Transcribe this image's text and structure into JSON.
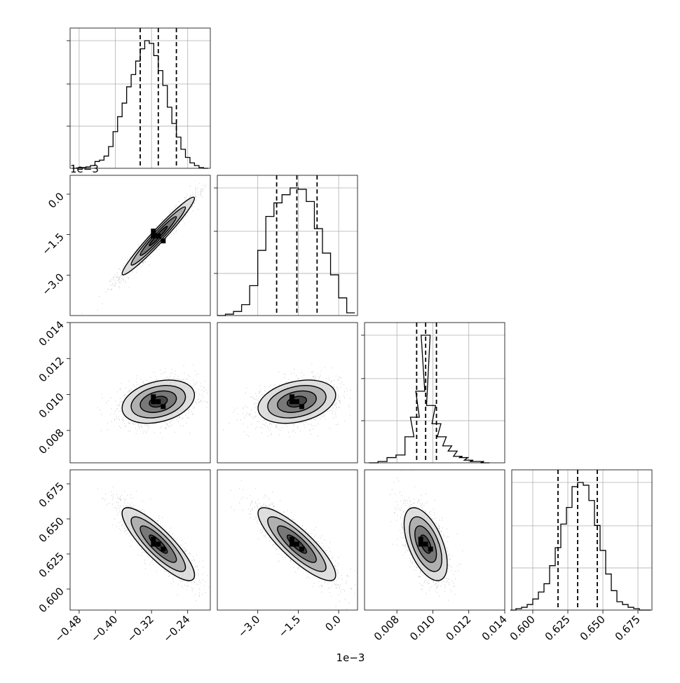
{
  "chart_data": {
    "type": "corner",
    "offset_labels": {
      "row2_y": "1e−3",
      "col2_x": "1e−3"
    },
    "parameters": [
      {
        "range": [
          -0.5,
          -0.19
        ],
        "ticks": [
          -0.48,
          -0.4,
          -0.32,
          -0.24
        ],
        "tick_labels": [
          "−0.48",
          "−0.40",
          "−0.32",
          "−0.24"
        ],
        "mean": -0.305,
        "sd": 0.04,
        "quantiles": [
          -0.345,
          -0.305,
          -0.265
        ],
        "hist_x": [
          -0.49,
          -0.48,
          -0.47,
          -0.46,
          -0.45,
          -0.44,
          -0.43,
          -0.42,
          -0.41,
          -0.4,
          -0.39,
          -0.38,
          -0.37,
          -0.36,
          -0.35,
          -0.34,
          -0.33,
          -0.32,
          -0.31,
          -0.3,
          -0.29,
          -0.28,
          -0.27,
          -0.26,
          -0.25,
          -0.24,
          -0.23,
          -0.22,
          -0.21,
          -0.2
        ],
        "hist_counts": [
          0.0,
          0.003,
          0.006,
          0.01,
          0.02,
          0.05,
          0.06,
          0.09,
          0.16,
          0.27,
          0.38,
          0.48,
          0.6,
          0.69,
          0.79,
          0.88,
          0.94,
          0.92,
          0.83,
          0.72,
          0.61,
          0.45,
          0.33,
          0.23,
          0.14,
          0.08,
          0.04,
          0.02,
          0.005,
          0.0
        ]
      },
      {
        "range": [
          -4.5,
          0.7
        ],
        "ticks": [
          -3.0,
          -1.5,
          0.0
        ],
        "tick_labels": [
          "−3.0",
          "−1.5",
          "0.0"
        ],
        "mean": -1.55,
        "sd": 0.72,
        "quantiles": [
          -2.3,
          -1.55,
          -0.8
        ],
        "hist_x": [
          -4.35,
          -4.05,
          -3.75,
          -3.45,
          -3.15,
          -2.85,
          -2.55,
          -2.25,
          -1.95,
          -1.65,
          -1.35,
          -1.05,
          -0.75,
          -0.45,
          -0.15,
          0.15,
          0.45
        ],
        "hist_counts": [
          0.0,
          0.01,
          0.03,
          0.08,
          0.22,
          0.48,
          0.73,
          0.83,
          0.89,
          0.94,
          0.93,
          0.84,
          0.64,
          0.46,
          0.3,
          0.13,
          0.02
        ]
      },
      {
        "range": [
          0.0062,
          0.014
        ],
        "ticks": [
          0.008,
          0.01,
          0.012,
          0.014
        ],
        "tick_labels": [
          "0.008",
          "0.010",
          "0.012",
          "0.014"
        ],
        "mean": 0.0096,
        "sd": 0.0006,
        "quantiles": [
          0.0091,
          0.0096,
          0.0102
        ],
        "hist_x": [
          0.0067,
          0.0072,
          0.0077,
          0.0082,
          0.0087,
          0.009,
          0.0093,
          0.0096,
          0.0099,
          0.0102,
          0.0105,
          0.0108,
          0.0111,
          0.0114,
          0.0117,
          0.012,
          0.0123,
          0.0126,
          0.0129
        ],
        "hist_counts": [
          0.0,
          0.01,
          0.04,
          0.06,
          0.2,
          0.35,
          0.55,
          0.98,
          0.44,
          0.3,
          0.2,
          0.13,
          0.09,
          0.05,
          0.04,
          0.02,
          0.01,
          0.01,
          0.0
        ]
      },
      {
        "range": [
          0.585,
          0.685
        ],
        "ticks": [
          0.6,
          0.625,
          0.65,
          0.675
        ],
        "tick_labels": [
          "0.600",
          "0.625",
          "0.650",
          "0.675"
        ],
        "mean": 0.632,
        "sd": 0.013,
        "quantiles": [
          0.618,
          0.632,
          0.646
        ],
        "hist_x": [
          0.586,
          0.59,
          0.594,
          0.598,
          0.602,
          0.606,
          0.61,
          0.614,
          0.618,
          0.622,
          0.626,
          0.63,
          0.634,
          0.638,
          0.642,
          0.646,
          0.65,
          0.654,
          0.658,
          0.662,
          0.666,
          0.67,
          0.674,
          0.678,
          0.682
        ],
        "hist_counts": [
          0.0,
          0.01,
          0.02,
          0.04,
          0.08,
          0.13,
          0.19,
          0.32,
          0.45,
          0.62,
          0.74,
          0.89,
          0.92,
          0.9,
          0.79,
          0.61,
          0.43,
          0.26,
          0.14,
          0.06,
          0.04,
          0.02,
          0.01,
          0.0,
          0.0
        ]
      }
    ],
    "correlations": [
      [
        0,
        1,
        0.97
      ],
      [
        0,
        2,
        0.3
      ],
      [
        1,
        2,
        0.3
      ],
      [
        0,
        3,
        -0.85
      ],
      [
        1,
        3,
        -0.85
      ],
      [
        2,
        3,
        -0.55
      ]
    ],
    "contour_levels": [
      0.5,
      1.0,
      1.5,
      2.0
    ]
  }
}
